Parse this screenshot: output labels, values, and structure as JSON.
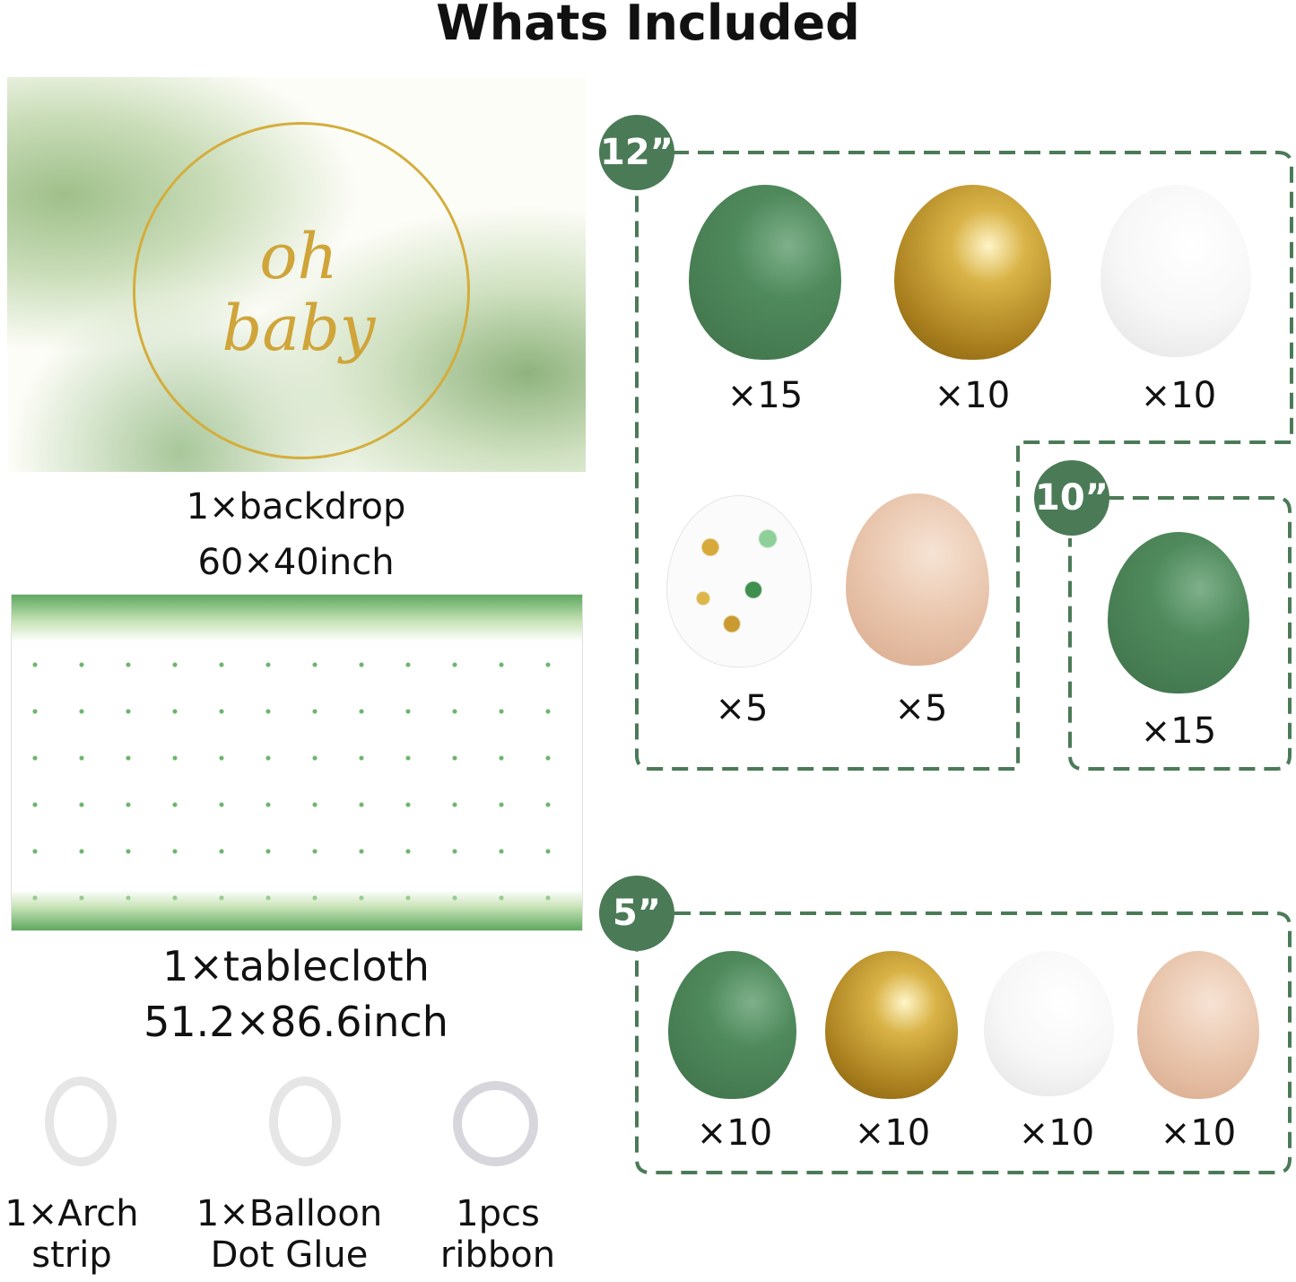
{
  "title": "Whats Included",
  "backdrop": {
    "script_text": "oh baby",
    "caption_line1": "1×backdrop",
    "caption_line2": "60×40inch"
  },
  "tablecloth": {
    "caption_line1": "1×tablecloth",
    "caption_line2": "51.2×86.6inch"
  },
  "tools": [
    {
      "line1": "1×Arch",
      "line2": "strip"
    },
    {
      "line1": "1×Balloon",
      "line2": "Dot Glue"
    },
    {
      "line1": "1pcs",
      "line2": "ribbon"
    }
  ],
  "sizes": {
    "s12": "12”",
    "s10": "10”",
    "s5": "5”"
  },
  "balloons12": [
    {
      "color": "green",
      "qty": "×15"
    },
    {
      "color": "gold",
      "qty": "×10"
    },
    {
      "color": "white",
      "qty": "×10"
    },
    {
      "color": "confetti",
      "qty": "×5"
    },
    {
      "color": "nude",
      "qty": "×5"
    }
  ],
  "balloons10": [
    {
      "color": "green",
      "qty": "×15"
    }
  ],
  "balloons5": [
    {
      "color": "green",
      "qty": "×10"
    },
    {
      "color": "gold",
      "qty": "×10"
    },
    {
      "color": "white",
      "qty": "×10"
    },
    {
      "color": "nude",
      "qty": "×10"
    }
  ],
  "colors": {
    "accent": "#4b7a57"
  }
}
